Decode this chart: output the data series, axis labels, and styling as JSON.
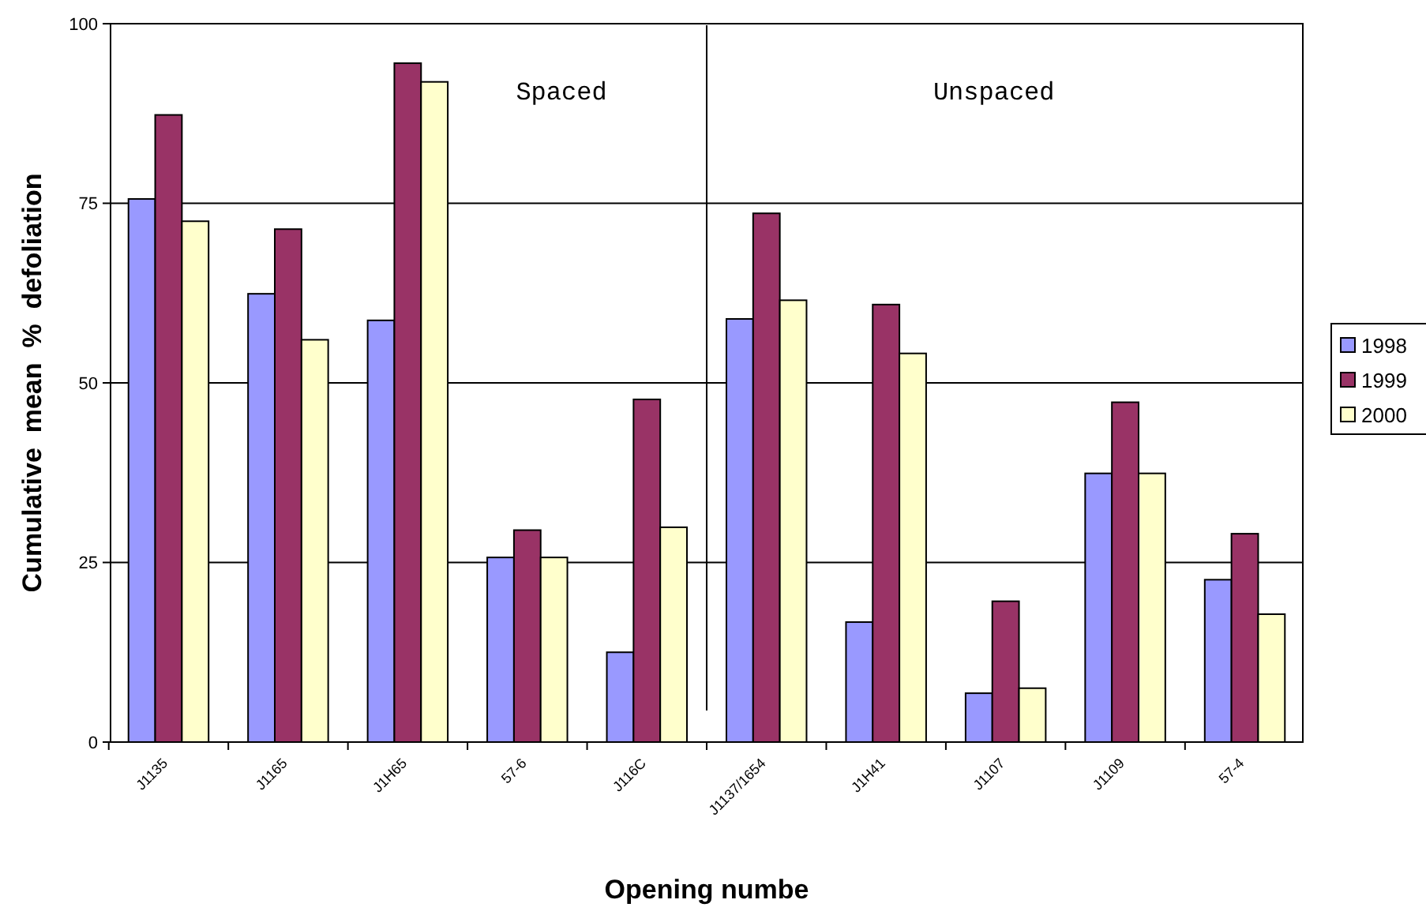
{
  "chart_data": {
    "type": "bar",
    "xlabel": "Opening numbe",
    "ylabel": "Cumulative  mean  %  defoliation",
    "categories": [
      "J1135",
      "J1165",
      "J1H65",
      "57-6",
      "J116C",
      "J1137/1654",
      "J1H41",
      "J1107",
      "J1109",
      "57-4"
    ],
    "series": [
      {
        "name": "1998",
        "color": "#9999ff",
        "values": [
          75.6,
          62.4,
          58.7,
          25.7,
          12.5,
          58.9,
          16.7,
          6.8,
          37.4,
          22.6
        ]
      },
      {
        "name": "1999",
        "color": "#993366",
        "values": [
          87.3,
          71.4,
          94.5,
          29.5,
          47.7,
          73.6,
          60.9,
          19.6,
          47.3,
          29.0
        ]
      },
      {
        "name": "2000",
        "color": "#ffffcc",
        "values": [
          72.5,
          56.0,
          91.9,
          25.7,
          29.9,
          61.5,
          54.1,
          7.5,
          37.4,
          17.8
        ]
      }
    ],
    "ylim": [
      0,
      100
    ],
    "yticks": [
      0,
      25,
      50,
      75,
      100
    ],
    "grid": "y",
    "legend": "right",
    "annotations": [
      "Spaced",
      "Unspaced"
    ]
  }
}
